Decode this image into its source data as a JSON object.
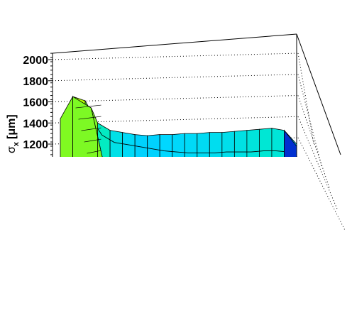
{
  "chart_data": {
    "type": "surface",
    "title": "",
    "ylabel": "σx [μm]",
    "ylabel_parts": {
      "symbol": "σ",
      "subscript": "x",
      "unit": "[μm]"
    },
    "ylim": [
      1100,
      2100
    ],
    "yticks": [
      1200,
      1400,
      1600,
      1800,
      2000
    ],
    "ytick_labels": [
      "1200",
      "1400",
      "1600",
      "1800",
      "2000"
    ],
    "grid": true,
    "view": "3D lego/surface, lower part cut off",
    "front_row": [
      1440,
      1650,
      1610,
      1400,
      1330,
      1310,
      1290,
      1280,
      1290,
      1290,
      1300,
      1300,
      1310,
      1310,
      1320,
      1330,
      1340,
      1350,
      1330,
      1200
    ],
    "second_row": [
      null,
      1590,
      1560,
      1380,
      1310,
      1290,
      1270,
      1250,
      1230,
      1220,
      1210,
      1210,
      1210,
      1220,
      1220,
      1220,
      1230,
      1230,
      1220,
      1150
    ],
    "colors": {
      "high": "#a8ff00",
      "mid": "#00e5ff",
      "low": "#0030d0"
    }
  }
}
